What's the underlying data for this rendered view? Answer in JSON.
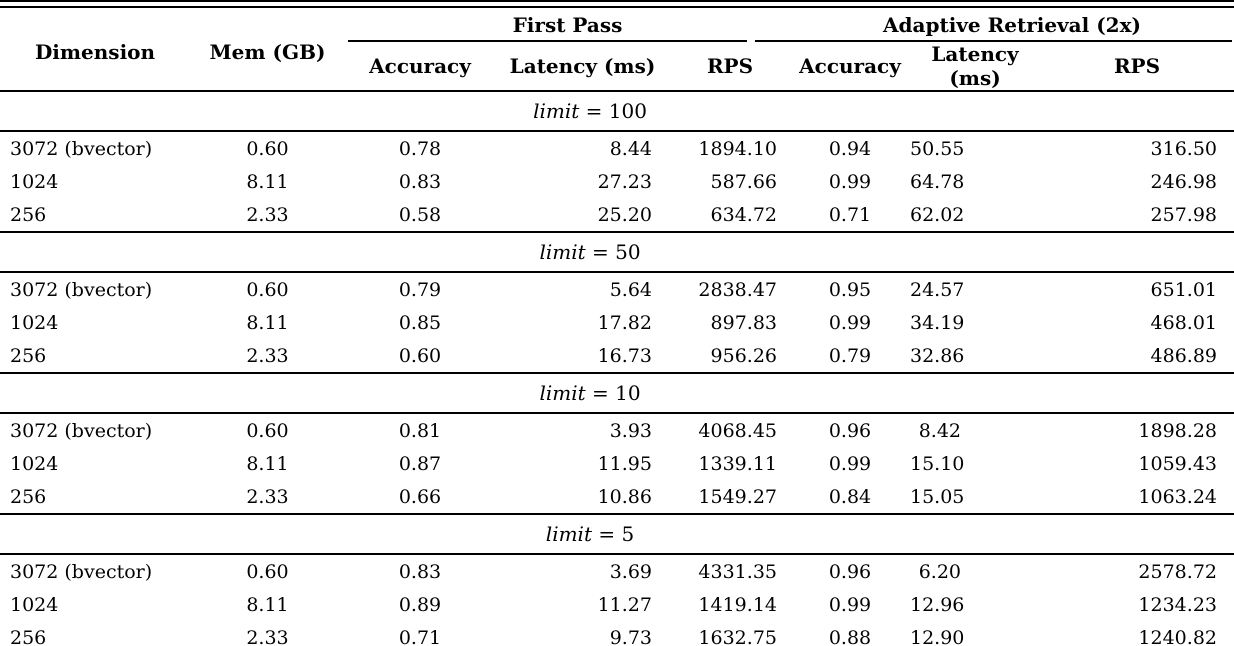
{
  "colors": {
    "text": "#000000",
    "background": "#ffffff",
    "rule": "#000000"
  },
  "table": {
    "header": {
      "dimension": "Dimension",
      "mem": "Mem (GB)",
      "first_pass": "First Pass",
      "adaptive": "Adaptive Retrieval (2x)",
      "accuracy": "Accuracy",
      "latency": "Latency (ms)",
      "rps": "RPS"
    },
    "column_keys": [
      "dimension",
      "mem",
      "fp-accuracy",
      "fp-latency",
      "fp-rps",
      "ar-accuracy",
      "ar-latency",
      "ar-rps"
    ],
    "sections": [
      {
        "limit_word": "limit",
        "limit_eq": "= 100",
        "rows": [
          [
            "3072 (bvector)",
            "0.60",
            "0.78",
            "8.44",
            "1894.10",
            "0.94",
            "50.55",
            "316.50"
          ],
          [
            "1024",
            "8.11",
            "0.83",
            "27.23",
            "587.66",
            "0.99",
            "64.78",
            "246.98"
          ],
          [
            "256",
            "2.33",
            "0.58",
            "25.20",
            "634.72",
            "0.71",
            "62.02",
            "257.98"
          ]
        ]
      },
      {
        "limit_word": "limit",
        "limit_eq": "= 50",
        "rows": [
          [
            "3072 (bvector)",
            "0.60",
            "0.79",
            "5.64",
            "2838.47",
            "0.95",
            "24.57",
            "651.01"
          ],
          [
            "1024",
            "8.11",
            "0.85",
            "17.82",
            "897.83",
            "0.99",
            "34.19",
            "468.01"
          ],
          [
            "256",
            "2.33",
            "0.60",
            "16.73",
            "956.26",
            "0.79",
            "32.86",
            "486.89"
          ]
        ]
      },
      {
        "limit_word": "limit",
        "limit_eq": "= 10",
        "rows": [
          [
            "3072 (bvector)",
            "0.60",
            "0.81",
            "3.93",
            "4068.45",
            "0.96",
            "8.42",
            "1898.28"
          ],
          [
            "1024",
            "8.11",
            "0.87",
            "11.95",
            "1339.11",
            "0.99",
            "15.10",
            "1059.43"
          ],
          [
            "256",
            "2.33",
            "0.66",
            "10.86",
            "1549.27",
            "0.84",
            "15.05",
            "1063.24"
          ]
        ]
      },
      {
        "limit_word": "limit",
        "limit_eq": "= 5",
        "rows": [
          [
            "3072 (bvector)",
            "0.60",
            "0.83",
            "3.69",
            "4331.35",
            "0.96",
            "6.20",
            "2578.72"
          ],
          [
            "1024",
            "8.11",
            "0.89",
            "11.27",
            "1419.14",
            "0.99",
            "12.96",
            "1234.23"
          ],
          [
            "256",
            "2.33",
            "0.71",
            "9.73",
            "1632.75",
            "0.88",
            "12.90",
            "1240.82"
          ]
        ]
      }
    ]
  }
}
